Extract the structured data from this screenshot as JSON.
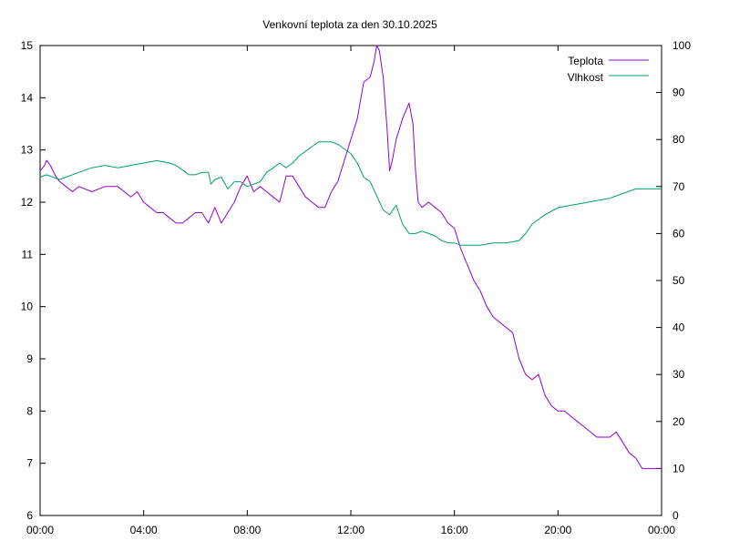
{
  "chart_data": {
    "type": "line",
    "title": "Venkovní teplota za den 30.10.2025",
    "x_ticks": [
      "00:00",
      "04:00",
      "08:00",
      "12:00",
      "16:00",
      "20:00",
      "00:00"
    ],
    "xlim_hours": [
      0,
      24
    ],
    "y_left_ticks": [
      "6",
      "7",
      "8",
      "9",
      "10",
      "11",
      "12",
      "13",
      "14",
      "15"
    ],
    "ylim_left": [
      6,
      15
    ],
    "y_right_ticks": [
      "0",
      "10",
      "20",
      "30",
      "40",
      "50",
      "60",
      "70",
      "80",
      "90",
      "100"
    ],
    "ylim_right": [
      0,
      100
    ],
    "legend_position": "top-right",
    "grid": false,
    "series": [
      {
        "name": "Teplota",
        "axis": "left",
        "color": "#9400d3",
        "x": [
          0,
          0.17,
          0.25,
          0.4,
          0.5,
          0.6,
          0.75,
          1.0,
          1.25,
          1.5,
          2.0,
          2.5,
          3.0,
          3.25,
          3.5,
          3.75,
          4.0,
          4.25,
          4.5,
          4.75,
          5.0,
          5.25,
          5.5,
          5.75,
          6.0,
          6.25,
          6.5,
          6.75,
          7.0,
          7.25,
          7.5,
          7.75,
          8.0,
          8.25,
          8.5,
          8.75,
          9.0,
          9.25,
          9.5,
          9.75,
          10.0,
          10.25,
          10.5,
          10.75,
          11.0,
          11.25,
          11.5,
          11.75,
          12.0,
          12.25,
          12.5,
          12.75,
          12.9,
          13.0,
          13.1,
          13.25,
          13.4,
          13.5,
          13.6,
          13.75,
          14.0,
          14.25,
          14.4,
          14.5,
          14.6,
          14.75,
          15.0,
          15.25,
          15.5,
          15.75,
          16.0,
          16.25,
          16.5,
          16.75,
          17.0,
          17.25,
          17.5,
          17.75,
          18.0,
          18.25,
          18.5,
          18.75,
          19.0,
          19.25,
          19.5,
          19.75,
          20.0,
          20.25,
          20.5,
          20.75,
          21.0,
          21.25,
          21.5,
          21.75,
          22.0,
          22.25,
          22.5,
          22.75,
          23.0,
          23.25,
          23.5,
          23.75,
          24.0
        ],
        "values": [
          12.6,
          12.7,
          12.8,
          12.7,
          12.6,
          12.5,
          12.4,
          12.3,
          12.2,
          12.3,
          12.2,
          12.3,
          12.3,
          12.2,
          12.1,
          12.2,
          12.0,
          11.9,
          11.8,
          11.8,
          11.7,
          11.6,
          11.6,
          11.7,
          11.8,
          11.8,
          11.6,
          11.9,
          11.6,
          11.8,
          12.0,
          12.3,
          12.5,
          12.2,
          12.3,
          12.2,
          12.1,
          12.0,
          12.5,
          12.5,
          12.3,
          12.1,
          12.0,
          11.9,
          11.9,
          12.2,
          12.4,
          12.8,
          13.2,
          13.6,
          14.3,
          14.4,
          14.7,
          15.0,
          14.9,
          14.4,
          13.4,
          12.6,
          12.8,
          13.2,
          13.6,
          13.9,
          13.5,
          12.6,
          12.0,
          11.9,
          12.0,
          11.9,
          11.8,
          11.6,
          11.5,
          11.1,
          10.8,
          10.5,
          10.3,
          10.0,
          9.8,
          9.7,
          9.6,
          9.5,
          9.0,
          8.7,
          8.6,
          8.7,
          8.3,
          8.1,
          8.0,
          8.0,
          7.9,
          7.8,
          7.7,
          7.6,
          7.5,
          7.5,
          7.5,
          7.6,
          7.4,
          7.2,
          7.1,
          6.9,
          6.9,
          6.9,
          6.9
        ]
      },
      {
        "name": "Vlhkost",
        "axis": "right",
        "color": "#009e73",
        "x": [
          0,
          0.25,
          0.5,
          0.75,
          1.0,
          1.5,
          2.0,
          2.5,
          3.0,
          3.5,
          4.0,
          4.5,
          5.0,
          5.25,
          5.5,
          5.75,
          6.0,
          6.25,
          6.5,
          6.6,
          6.75,
          7.0,
          7.25,
          7.5,
          7.75,
          8.0,
          8.25,
          8.5,
          8.75,
          9.0,
          9.25,
          9.5,
          9.75,
          10.0,
          10.25,
          10.5,
          10.75,
          11.0,
          11.25,
          11.5,
          11.75,
          12.0,
          12.25,
          12.5,
          12.75,
          13.0,
          13.25,
          13.5,
          13.75,
          14.0,
          14.25,
          14.5,
          14.75,
          15.0,
          15.25,
          15.5,
          15.75,
          16.0,
          16.25,
          16.5,
          16.75,
          17.0,
          17.5,
          18.0,
          18.5,
          18.75,
          19.0,
          19.25,
          19.5,
          20.0,
          20.5,
          21.0,
          21.5,
          22.0,
          22.5,
          23.0,
          23.5,
          24.0
        ],
        "values": [
          72.0,
          72.5,
          72.0,
          71.5,
          72.0,
          73.0,
          74.0,
          74.5,
          74.0,
          74.5,
          75.0,
          75.5,
          75.0,
          74.5,
          73.5,
          72.5,
          72.5,
          73.0,
          73.0,
          70.5,
          71.5,
          72.0,
          69.5,
          71.0,
          71.0,
          70.0,
          70.5,
          71.0,
          73.0,
          74.0,
          75.0,
          74.0,
          75.0,
          76.5,
          77.5,
          78.5,
          79.5,
          79.5,
          79.5,
          79.0,
          78.0,
          77.0,
          75.0,
          72.0,
          71.0,
          68.0,
          65.0,
          64.0,
          66.0,
          62.0,
          60.0,
          60.0,
          60.5,
          60.0,
          59.5,
          58.5,
          58.0,
          58.0,
          57.5,
          57.5,
          57.5,
          57.5,
          58.0,
          58.0,
          58.5,
          60.0,
          62.0,
          63.0,
          64.0,
          65.5,
          66.0,
          66.5,
          67.0,
          67.5,
          68.5,
          69.5,
          69.5,
          69.5
        ]
      }
    ]
  }
}
